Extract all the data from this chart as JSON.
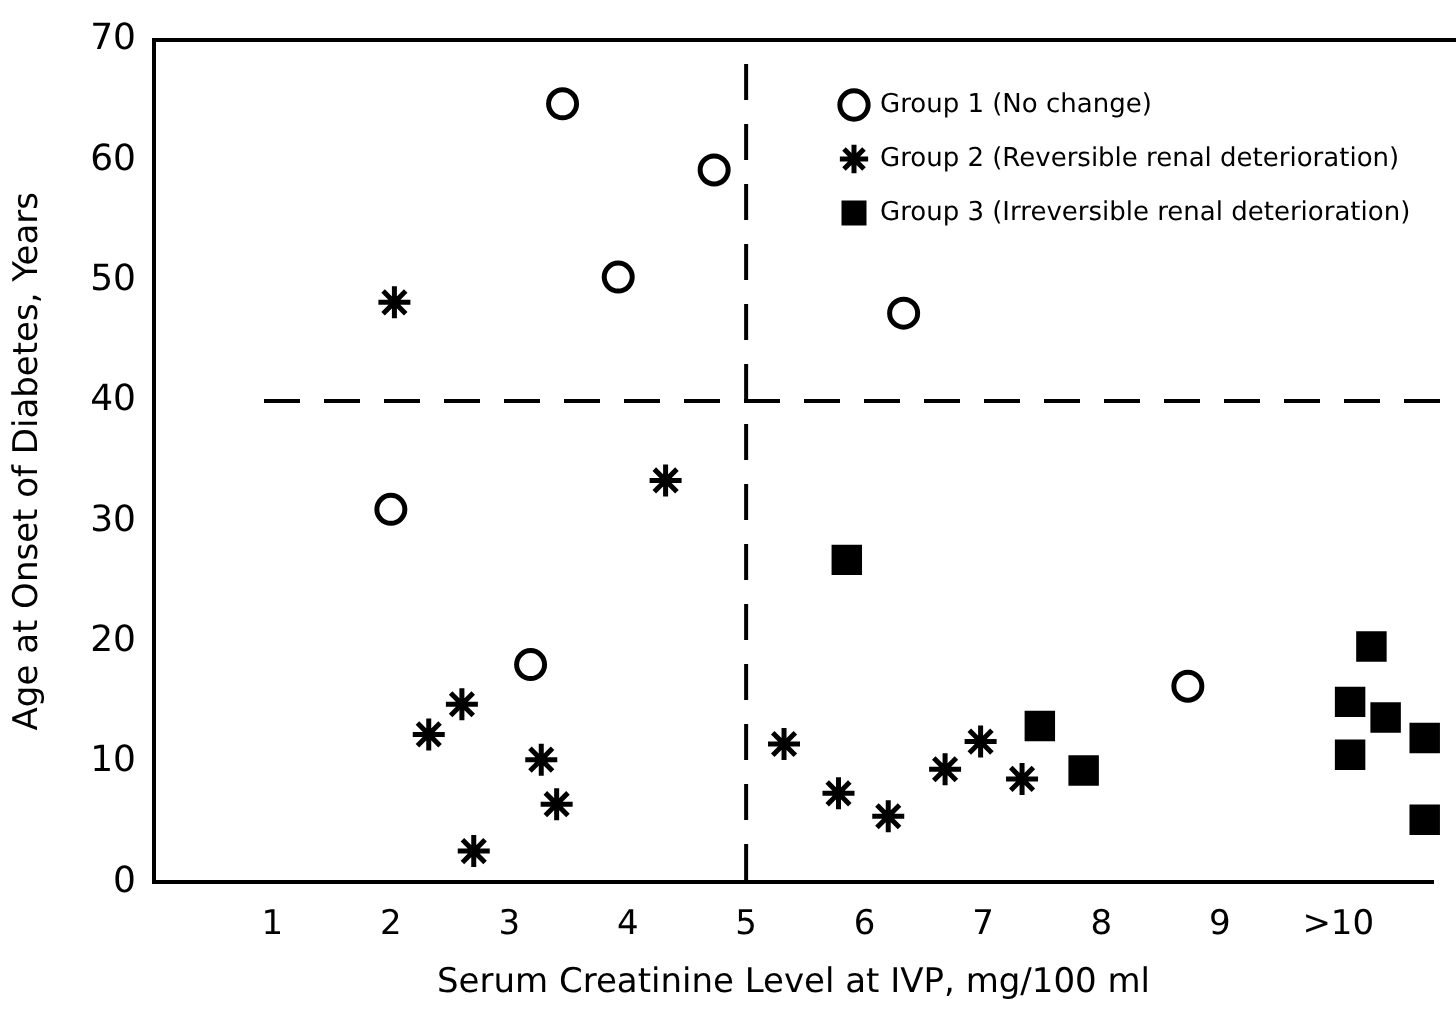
{
  "chart_data": {
    "type": "scatter",
    "xlabel": "Serum Creatinine Level at IVP, mg/100 ml",
    "ylabel": "Age at Onset of Diabetes, Years",
    "xlim": [
      0,
      10.8
    ],
    "ylim": [
      0,
      70
    ],
    "xticks": [
      1,
      2,
      3,
      4,
      5,
      6,
      7,
      8,
      9,
      {
        "value": 10,
        "label": ">10"
      }
    ],
    "yticks": [
      0,
      10,
      20,
      30,
      40,
      50,
      60,
      70
    ],
    "grid": false,
    "legend": "top right",
    "ref_lines": [
      {
        "axis": "x",
        "value": 5,
        "line_style": "dashed"
      },
      {
        "axis": "y",
        "value": 40,
        "line_style": "dashed"
      }
    ],
    "series": [
      {
        "name": "Group 1 (No change)",
        "color": "#000000",
        "marker": "circle",
        "x": [
          2.0,
          3.45,
          3.92,
          4.73,
          6.33,
          3.18,
          8.73
        ],
        "values": [
          31,
          64.7,
          50.3,
          59.2,
          47.3,
          18.1,
          16.3
        ]
      },
      {
        "name": "Group 2 (Reversible renal deterioration)",
        "color": "#000000",
        "marker": "cross",
        "x": [
          2.03,
          4.32,
          2.32,
          2.6,
          3.27,
          3.4,
          2.7,
          5.32,
          5.78,
          6.2,
          6.68,
          6.98,
          7.33
        ],
        "values": [
          48.2,
          33.4,
          12.3,
          14.8,
          10.2,
          6.5,
          2.6,
          11.5,
          7.4,
          5.5,
          9.4,
          11.7,
          8.6
        ]
      },
      {
        "name": "Group 3 (Irreversible renal deterioration)",
        "color": "#000000",
        "marker": "square",
        "x": [
          5.85,
          7.48,
          7.85,
          10.1,
          10.1,
          10.28,
          10.4,
          10.73,
          10.73
        ],
        "values": [
          26.8,
          13,
          9.3,
          15,
          10.6,
          19.6,
          13.7,
          12,
          5.2
        ]
      }
    ]
  }
}
